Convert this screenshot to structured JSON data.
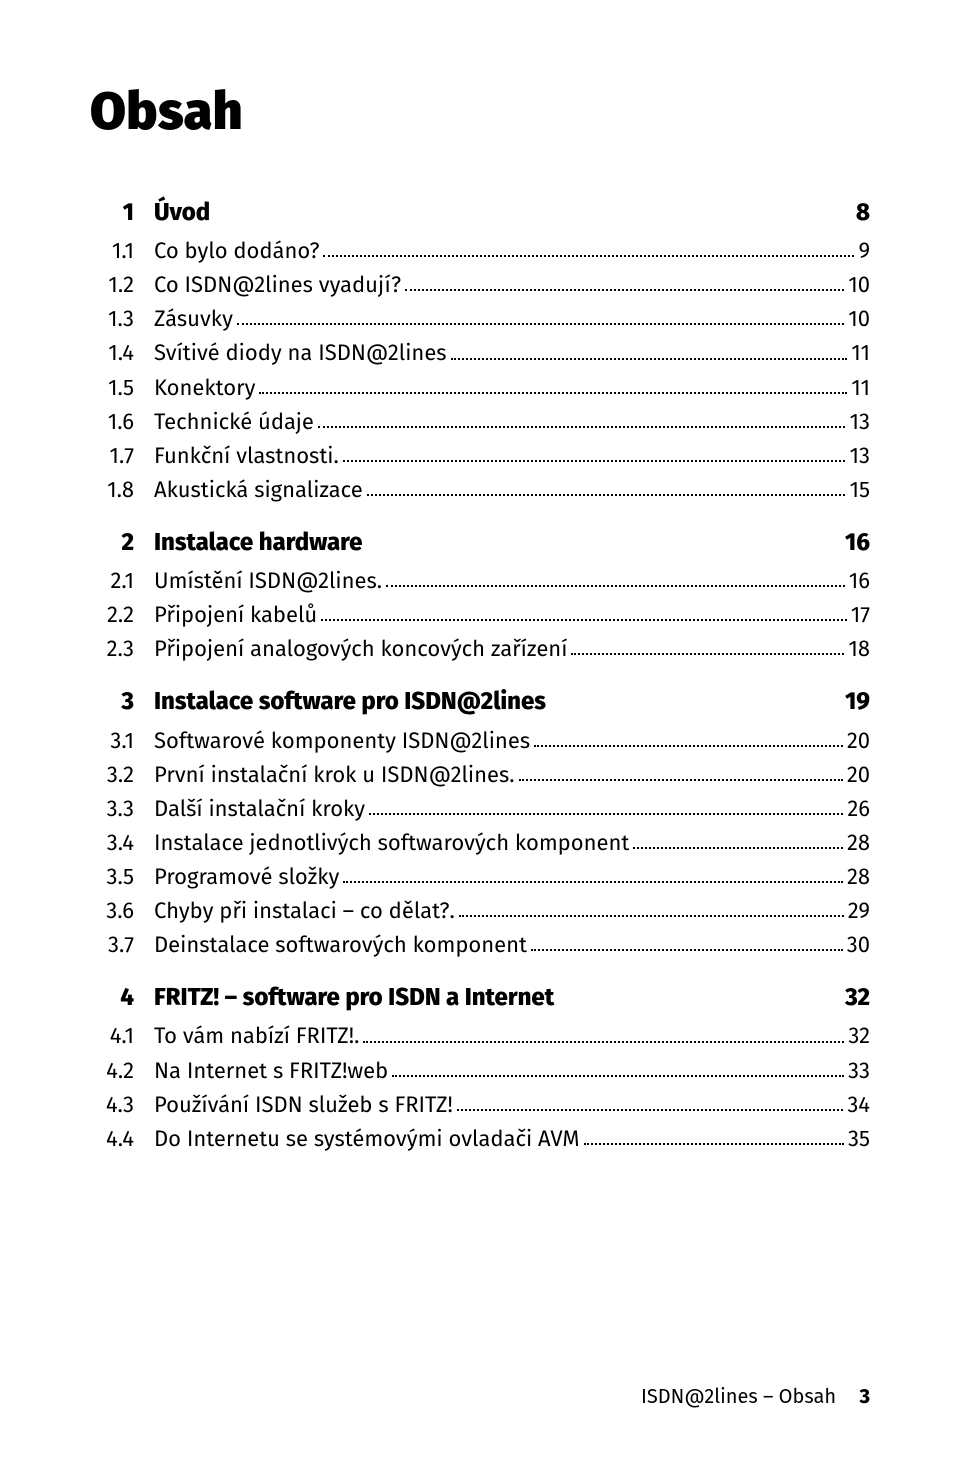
{
  "title": "Obsah",
  "footer": {
    "text": "ISDN@2lines – Obsah",
    "page": "3"
  },
  "toc": [
    {
      "type": "section",
      "num": "1",
      "label": "Úvod",
      "page": "8"
    },
    {
      "type": "item",
      "num": "1.1",
      "label": "Co bylo dodáno?",
      "page": "9"
    },
    {
      "type": "item",
      "num": "1.2",
      "label": "Co ISDN@2lines vyadují?",
      "page": "10"
    },
    {
      "type": "item",
      "num": "1.3",
      "label": "Zásuvky",
      "page": "10"
    },
    {
      "type": "item",
      "num": "1.4",
      "label": "Svítivé diody na ISDN@2lines",
      "page": "11"
    },
    {
      "type": "item",
      "num": "1.5",
      "label": "Konektory",
      "page": "11"
    },
    {
      "type": "item",
      "num": "1.6",
      "label": "Technické údaje",
      "page": "13"
    },
    {
      "type": "item",
      "num": "1.7",
      "label": "Funkční vlastnosti.",
      "page": "13"
    },
    {
      "type": "item",
      "num": "1.8",
      "label": "Akustická signalizace",
      "page": "15"
    },
    {
      "type": "section",
      "num": "2",
      "label": "Instalace hardware",
      "page": "16"
    },
    {
      "type": "item",
      "num": "2.1",
      "label": "Umístění ISDN@2lines.",
      "page": "16"
    },
    {
      "type": "item",
      "num": "2.2",
      "label": "Připojení kabelů",
      "page": "17"
    },
    {
      "type": "item",
      "num": "2.3",
      "label": "Připojení analogových koncových zařízení",
      "page": "18"
    },
    {
      "type": "section",
      "num": "3",
      "label": "Instalace software pro ISDN@2lines",
      "page": "19"
    },
    {
      "type": "item",
      "num": "3.1",
      "label": "Softwarové komponenty ISDN@2lines",
      "page": "20"
    },
    {
      "type": "item",
      "num": "3.2",
      "label": "První instalační krok u ISDN@2lines.",
      "page": "20"
    },
    {
      "type": "item",
      "num": "3.3",
      "label": "Další instalační kroky",
      "page": "26"
    },
    {
      "type": "item",
      "num": "3.4",
      "label": "Instalace jednotlivých softwarových komponent",
      "page": "28"
    },
    {
      "type": "item",
      "num": "3.5",
      "label": "Programové složky",
      "page": "28"
    },
    {
      "type": "item",
      "num": "3.6",
      "label": "Chyby při instalaci – co dělat?.",
      "page": "29"
    },
    {
      "type": "item",
      "num": "3.7",
      "label": "Deinstalace softwarových komponent",
      "page": "30"
    },
    {
      "type": "section",
      "num": "4",
      "label": "FRITZ! – software pro ISDN a Internet",
      "page": "32"
    },
    {
      "type": "item",
      "num": "4.1",
      "label": "To vám nabízí FRITZ!.",
      "page": "32"
    },
    {
      "type": "item",
      "num": "4.2",
      "label": "Na Internet s FRITZ!web",
      "page": "33"
    },
    {
      "type": "item",
      "num": "4.3",
      "label": "Používání ISDN služeb s FRITZ!",
      "page": "34"
    },
    {
      "type": "item",
      "num": "4.4",
      "label": "Do Internetu se systémovými ovladači AVM",
      "page": "35"
    }
  ]
}
